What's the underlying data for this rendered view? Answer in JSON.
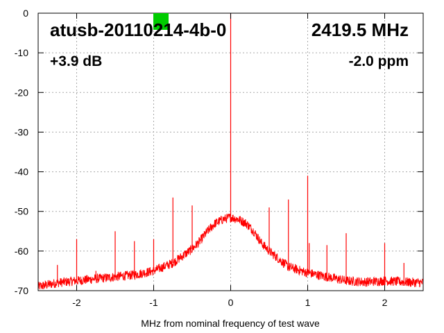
{
  "chart_data": {
    "type": "line",
    "device": "atusb-20110214-4b-0",
    "frequency": "2419.5 MHz",
    "gain": "+3.9 dB",
    "offset": "-2.0 ppm",
    "xlabel": "MHz from nominal frequency of test wave",
    "xlim": [
      -2.5,
      2.5
    ],
    "ylim": [
      -70,
      0
    ],
    "xticks": [
      -2,
      -1,
      0,
      1,
      2
    ],
    "yticks": [
      0,
      -10,
      -20,
      -30,
      -40,
      -50,
      -60,
      -70
    ],
    "xtick_labels": [
      "-2",
      "-1",
      "0",
      "1",
      "2"
    ],
    "ytick_labels": [
      "0",
      "-10",
      "-20",
      "-30",
      "-40",
      "-50",
      "-60",
      "-70"
    ],
    "grid": true,
    "series_color": "#ff0000",
    "status_indicator_color": "#00cc00",
    "noise_floor": {
      "x": [
        -2.5,
        -2.25,
        -2.0,
        -1.75,
        -1.5,
        -1.25,
        -1.0,
        -0.75,
        -0.5,
        -0.4,
        -0.3,
        -0.2,
        -0.1,
        0.0,
        0.1,
        0.2,
        0.3,
        0.4,
        0.5,
        0.75,
        1.0,
        1.25,
        1.5,
        1.75,
        2.0,
        2.25,
        2.5
      ],
      "y": [
        -69,
        -68,
        -67.5,
        -67,
        -66.5,
        -66,
        -65,
        -63,
        -59.5,
        -57.5,
        -55,
        -53,
        -52,
        -51.5,
        -52,
        -53,
        -55,
        -58,
        -60,
        -64,
        -65.5,
        -66.5,
        -67.5,
        -67.8,
        -67.5,
        -67.8,
        -68
      ]
    },
    "spurs": {
      "x": [
        -2.25,
        -2.0,
        -1.75,
        -1.5,
        -1.25,
        -1.0,
        -0.75,
        -0.5,
        0.0,
        0.5,
        0.75,
        1.0,
        1.02,
        1.25,
        1.5,
        2.0,
        2.25
      ],
      "y": [
        -63.5,
        -57,
        -65,
        -55,
        -57.5,
        -57,
        -46.5,
        -48.5,
        0,
        -49,
        -47,
        -41,
        -58,
        -58.5,
        -55.5,
        -58,
        -63
      ]
    }
  }
}
